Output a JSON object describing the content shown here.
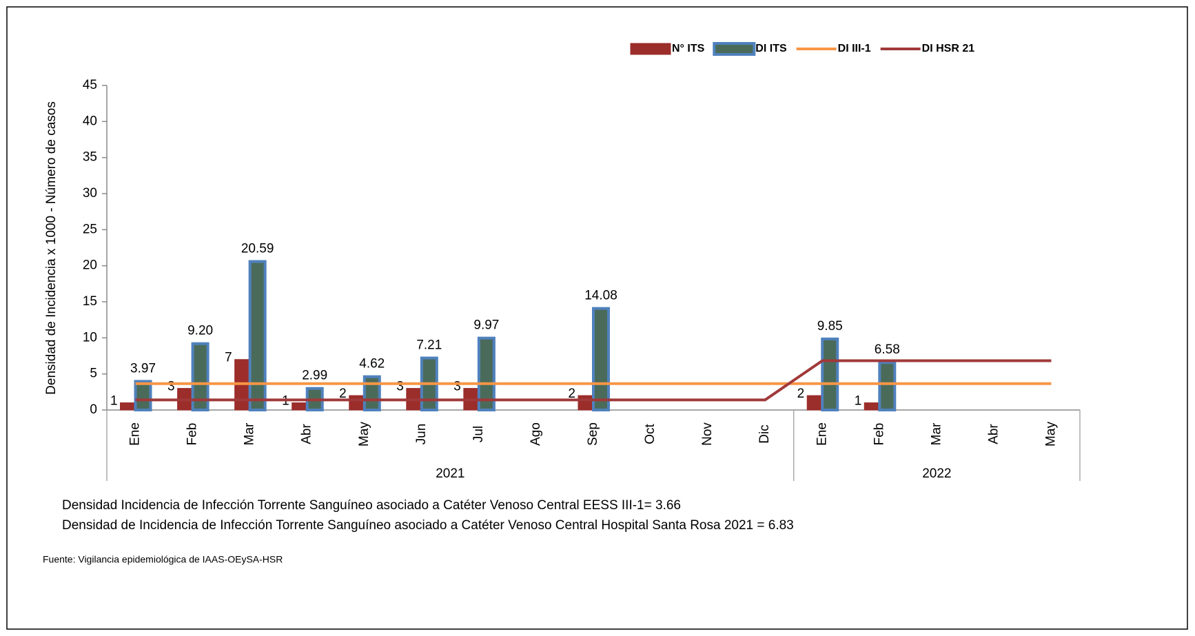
{
  "chart_data": {
    "type": "bar",
    "y_label": "Densidad de Incidencia x 1000 - Número de casos",
    "categories": [
      "Ene",
      "Feb",
      "Mar",
      "Abr",
      "May",
      "Jun",
      "Jul",
      "Ago",
      "Sep",
      "Oct",
      "Nov",
      "Dic",
      "Ene",
      "Feb",
      "Mar",
      "Abr",
      "May"
    ],
    "groups": [
      {
        "label": "2021",
        "count": 12
      },
      {
        "label": "2022",
        "count": 5
      }
    ],
    "series": [
      {
        "name": "N° ITS",
        "type": "bar",
        "color": "#9b2d2a",
        "values": [
          1,
          3,
          7,
          1,
          2,
          3,
          3,
          null,
          2,
          null,
          null,
          null,
          2,
          1,
          null,
          null,
          null
        ]
      },
      {
        "name": "DI ITS",
        "type": "bar",
        "color": "#4f81bd",
        "values": [
          3.97,
          9.2,
          20.59,
          2.99,
          4.62,
          7.21,
          9.97,
          null,
          14.08,
          null,
          null,
          null,
          9.85,
          6.58,
          null,
          null,
          null
        ],
        "value_labels": [
          "3.97",
          "9.20",
          "20.59",
          "2.99",
          "4.62",
          "7.21",
          "9.97",
          null,
          "14.08",
          null,
          null,
          null,
          "9.85",
          "6.58",
          null,
          null,
          null
        ]
      },
      {
        "name": "DI III-1",
        "type": "line",
        "color": "#f79646",
        "values": [
          3.66,
          3.66,
          3.66,
          3.66,
          3.66,
          3.66,
          3.66,
          3.66,
          3.66,
          3.66,
          3.66,
          3.66,
          3.66,
          3.66,
          3.66,
          3.66,
          3.66
        ]
      },
      {
        "name": "DI HSR 21",
        "type": "line",
        "color": "#a0393a",
        "values": [
          1.4,
          1.4,
          1.4,
          1.4,
          1.4,
          1.4,
          1.4,
          1.4,
          1.4,
          1.4,
          1.4,
          1.4,
          6.83,
          6.83,
          6.83,
          6.83,
          6.83
        ]
      }
    ],
    "ylim": [
      0,
      45
    ],
    "yticks": [
      0,
      5,
      10,
      15,
      20,
      25,
      30,
      35,
      40,
      45
    ],
    "notes": [
      "Densidad Incidencia de Infección Torrente Sanguíneo asociado a Catéter Venoso Central EESS III-1= 3.66",
      "Densidad de Incidencia de Infección Torrente Sanguíneo asociado a Catéter Venoso Central Hospital Santa Rosa 2021 = 6.83"
    ],
    "source": "Fuente: Vigilancia epidemiológica de IAAS-OEySA-HSR"
  }
}
